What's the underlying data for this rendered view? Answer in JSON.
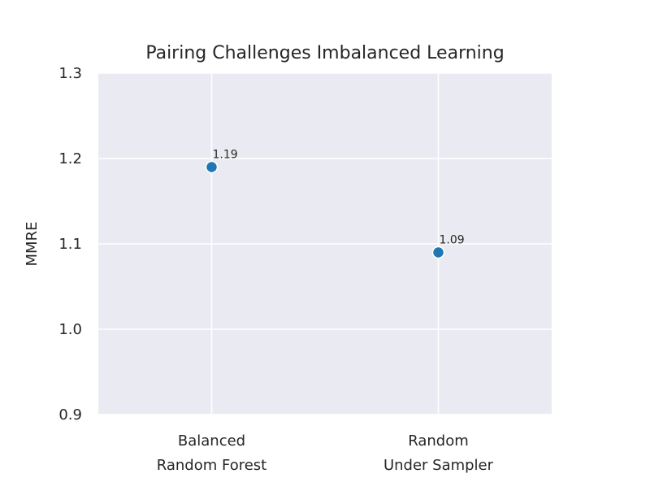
{
  "chart_data": {
    "type": "scatter",
    "title": "Pairing Challenges Imbalanced Learning",
    "xlabel": "",
    "ylabel": "MMRE",
    "categories": [
      "Balanced\nRandom Forest",
      "Random\nUnder Sampler"
    ],
    "values": [
      1.19,
      1.09
    ],
    "data_labels": [
      "1.19",
      "1.09"
    ],
    "ylim": [
      0.9,
      1.3
    ],
    "yticks": [
      "0.9",
      "1.0",
      "1.1",
      "1.2",
      "1.3"
    ],
    "grid": true,
    "legend": "none",
    "colors": {
      "marker": "#1f77b4",
      "background": "#eaeaf2",
      "grid": "#ffffff"
    }
  }
}
